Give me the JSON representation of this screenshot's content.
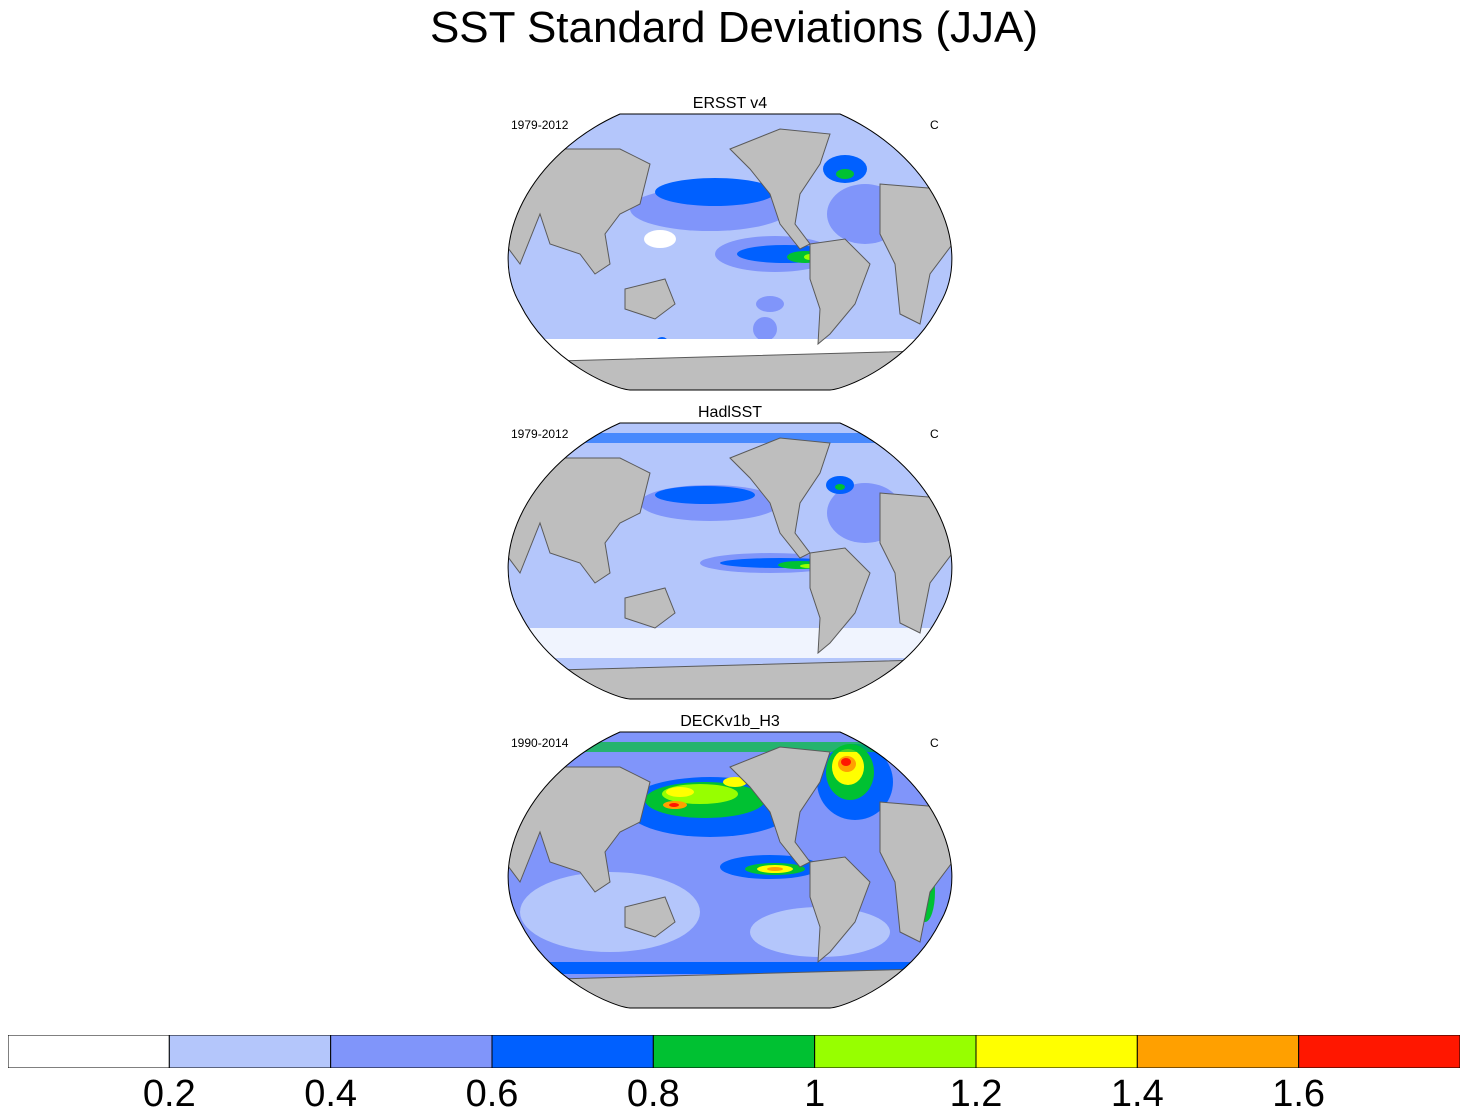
{
  "title": "SST Standard Deviations (JJA)",
  "panels": [
    {
      "name": "ersst",
      "title": "ERSST v4",
      "left_label": "1979-2012",
      "right_label": "C"
    },
    {
      "name": "hadisst",
      "title": "HadlSST",
      "left_label": "1979-2012",
      "right_label": "C"
    },
    {
      "name": "deck",
      "title": "DECKv1b_H3",
      "left_label": "1990-2014",
      "right_label": "C"
    }
  ],
  "colorbar": {
    "colors": [
      "#ffffff",
      "#b4c6fb",
      "#8095fa",
      "#0060ff",
      "#00c132",
      "#97ff00",
      "#ffff00",
      "#ffa000",
      "#ff1700"
    ],
    "labels": [
      "0.2",
      "0.4",
      "0.6",
      "0.8",
      "1",
      "1.2",
      "1.4",
      "1.6"
    ]
  },
  "colors": {
    "land": "#bebebe",
    "coast": "#5a5a5a"
  }
}
